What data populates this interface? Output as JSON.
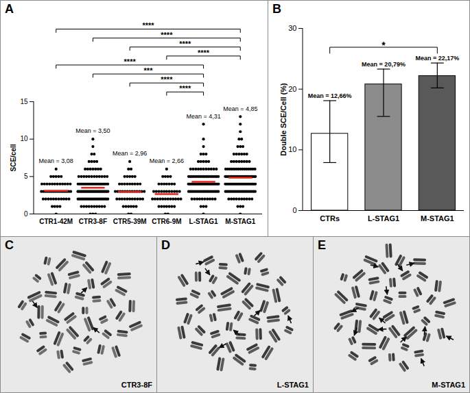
{
  "chart_data": [
    {
      "panel": "A",
      "type": "scatter",
      "categories": [
        "CTR1-42M",
        "CTR3-8F",
        "CTR5-39M",
        "CTR6-9M",
        "L-STAG1",
        "M-STAG1"
      ],
      "y_label": "SCE/cell",
      "ylim": [
        0,
        15
      ],
      "yticks": [
        0,
        5,
        10,
        15
      ],
      "color": "#000000",
      "values": [
        [
          0,
          1,
          1,
          1,
          1,
          2,
          2,
          2,
          2,
          2,
          2,
          2,
          2,
          2,
          2,
          2,
          3,
          3,
          3,
          3,
          3,
          3,
          3,
          3,
          3,
          3,
          3,
          3,
          3,
          3,
          3,
          3,
          4,
          4,
          4,
          4,
          4,
          4,
          4,
          4,
          4,
          4,
          4,
          4,
          5,
          5,
          5,
          5,
          5,
          6
        ],
        [
          0,
          0,
          0,
          1,
          1,
          1,
          1,
          1,
          1,
          1,
          1,
          1,
          1,
          2,
          2,
          2,
          2,
          2,
          2,
          2,
          2,
          2,
          2,
          2,
          2,
          2,
          2,
          2,
          2,
          2,
          2,
          2,
          2,
          2,
          2,
          3,
          3,
          3,
          3,
          3,
          3,
          3,
          3,
          3,
          3,
          3,
          3,
          3,
          3,
          3,
          3,
          3,
          3,
          3,
          3,
          3,
          3,
          3,
          3,
          3,
          3,
          3,
          4,
          4,
          4,
          4,
          4,
          4,
          4,
          4,
          4,
          4,
          4,
          4,
          4,
          4,
          4,
          4,
          4,
          4,
          4,
          4,
          4,
          5,
          5,
          5,
          5,
          5,
          5,
          5,
          5,
          5,
          5,
          5,
          5,
          6,
          6,
          6,
          6,
          6,
          6,
          6,
          7,
          7,
          7,
          7,
          8,
          8,
          9,
          10
        ],
        [
          0,
          0,
          1,
          1,
          1,
          1,
          1,
          1,
          2,
          2,
          2,
          2,
          2,
          2,
          2,
          2,
          2,
          2,
          2,
          3,
          3,
          3,
          3,
          3,
          3,
          3,
          3,
          3,
          3,
          3,
          3,
          3,
          4,
          4,
          4,
          4,
          4,
          4,
          4,
          4,
          4,
          5,
          5,
          5,
          5,
          5,
          6,
          6,
          7
        ],
        [
          0,
          0,
          1,
          1,
          1,
          1,
          1,
          1,
          1,
          2,
          2,
          2,
          2,
          2,
          2,
          2,
          2,
          2,
          2,
          2,
          2,
          3,
          3,
          3,
          3,
          3,
          3,
          3,
          3,
          3,
          3,
          3,
          4,
          4,
          4,
          4,
          4,
          4,
          4,
          5,
          5,
          5,
          5,
          6
        ],
        [
          0,
          1,
          1,
          1,
          2,
          2,
          2,
          2,
          2,
          2,
          2,
          2,
          2,
          2,
          3,
          3,
          3,
          3,
          3,
          3,
          3,
          3,
          3,
          3,
          3,
          3,
          3,
          3,
          3,
          3,
          3,
          3,
          3,
          4,
          4,
          4,
          4,
          4,
          4,
          4,
          4,
          4,
          4,
          4,
          4,
          4,
          4,
          4,
          4,
          4,
          4,
          4,
          4,
          4,
          4,
          4,
          4,
          4,
          4,
          5,
          5,
          5,
          5,
          5,
          5,
          5,
          5,
          5,
          5,
          5,
          5,
          5,
          5,
          5,
          5,
          5,
          5,
          5,
          6,
          6,
          6,
          6,
          6,
          6,
          6,
          6,
          6,
          6,
          6,
          7,
          7,
          7,
          7,
          7,
          8,
          8,
          8,
          9,
          10,
          12
        ],
        [
          0,
          1,
          1,
          1,
          2,
          2,
          2,
          2,
          2,
          2,
          2,
          2,
          2,
          2,
          3,
          3,
          3,
          3,
          3,
          3,
          3,
          3,
          3,
          3,
          3,
          3,
          3,
          3,
          3,
          3,
          3,
          3,
          3,
          4,
          4,
          4,
          4,
          4,
          4,
          4,
          4,
          4,
          4,
          4,
          4,
          4,
          4,
          4,
          4,
          4,
          4,
          4,
          4,
          4,
          4,
          4,
          4,
          5,
          5,
          5,
          5,
          5,
          5,
          5,
          5,
          5,
          5,
          5,
          5,
          5,
          5,
          5,
          5,
          5,
          5,
          5,
          5,
          5,
          5,
          5,
          5,
          5,
          5,
          6,
          6,
          6,
          6,
          6,
          6,
          6,
          6,
          6,
          6,
          6,
          6,
          6,
          6,
          6,
          7,
          7,
          7,
          7,
          7,
          7,
          7,
          7,
          8,
          8,
          8,
          8,
          8,
          8,
          9,
          9,
          9,
          10,
          10,
          11,
          12,
          13
        ]
      ],
      "means": [
        3.08,
        3.5,
        2.96,
        2.66,
        4.31,
        4.85
      ],
      "mean_labels": [
        "Mean = 3,08",
        "Mean = 3,50",
        "Mean = 2,96",
        "Mean = 2,66",
        "Mean = 4,31",
        "Mean = 4,85"
      ],
      "comparisons": [
        {
          "from": "CTR1-42M",
          "to": "M-STAG1",
          "label": "****"
        },
        {
          "from": "CTR3-8F",
          "to": "M-STAG1",
          "label": "****"
        },
        {
          "from": "CTR5-39M",
          "to": "M-STAG1",
          "label": "****"
        },
        {
          "from": "CTR6-9M",
          "to": "M-STAG1",
          "label": "****"
        },
        {
          "from": "CTR1-42M",
          "to": "L-STAG1",
          "label": "****"
        },
        {
          "from": "CTR3-8F",
          "to": "L-STAG1",
          "label": "***"
        },
        {
          "from": "CTR5-39M",
          "to": "L-STAG1",
          "label": "****"
        },
        {
          "from": "CTR6-9M",
          "to": "L-STAG1",
          "label": "****"
        }
      ]
    },
    {
      "panel": "B",
      "type": "bar",
      "categories": [
        "CTRs",
        "L-STAG1",
        "M-STAG1"
      ],
      "values": [
        12.66,
        20.79,
        22.17
      ],
      "value_labels": [
        "Mean = 12,66%",
        "Mean = 20,79%",
        "Mean = 22,17%"
      ],
      "data_labels": true,
      "colors": [
        "#ffffff",
        "#8c8c8c",
        "#595959"
      ],
      "error_low": [
        7.9,
        15.5,
        20.2
      ],
      "error_high": [
        18.1,
        23.3,
        24.3
      ],
      "y_label": "Double SCE/Cell (%)",
      "ylim": [
        0,
        30
      ],
      "yticks": [
        0,
        10,
        20,
        30
      ],
      "comparisons": [
        {
          "from": "CTRs",
          "to": "M-STAG1",
          "label": "*"
        }
      ]
    }
  ],
  "images": [
    {
      "panel": "C",
      "label": "CTR3-8F",
      "arrows": 3
    },
    {
      "panel": "D",
      "label": "L-STAG1",
      "arrows": 6
    },
    {
      "panel": "E",
      "label": "M-STAG1",
      "arrows": 12
    }
  ]
}
